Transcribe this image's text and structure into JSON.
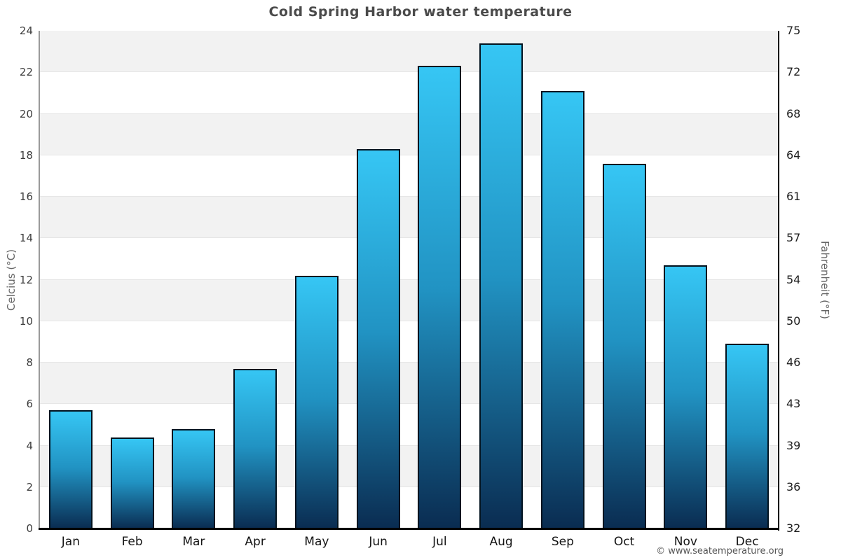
{
  "footer": {
    "text": "© www.seatemperature.org"
  },
  "chart_data": {
    "type": "bar",
    "title": "Cold Spring Harbor water temperature",
    "categories": [
      "Jan",
      "Feb",
      "Mar",
      "Apr",
      "May",
      "Jun",
      "Jul",
      "Aug",
      "Sep",
      "Oct",
      "Nov",
      "Dec"
    ],
    "values": [
      5.7,
      4.4,
      4.8,
      7.7,
      12.2,
      18.3,
      22.3,
      23.4,
      21.1,
      17.6,
      12.7,
      8.9
    ],
    "series_name": "Water temperature",
    "xlabel": "",
    "ylabel_left": "Celcius (°C)",
    "ylabel_right": "Fahrenheit (°F)",
    "ylim_left": [
      0,
      24
    ],
    "yticks_left": [
      0,
      2,
      4,
      6,
      8,
      10,
      12,
      14,
      16,
      18,
      20,
      22,
      24
    ],
    "yticks_right": [
      32,
      36,
      39,
      43,
      46,
      50,
      54,
      57,
      61,
      64,
      68,
      72,
      75
    ],
    "grid": "horizontal-bands",
    "legend": "none",
    "colors": {
      "band_gray": "#f2f2f2",
      "band_white": "#ffffff",
      "gridline": "#e6e6e6",
      "bar_gradient_top": "#36c6f4",
      "bar_gradient_mid": "#2193c3",
      "bar_gradient_bottom": "#0a2c51",
      "bar_border": "#02131f",
      "axis_left_spine": "#9a9a9a",
      "axis_right_spine": "#000000",
      "axis_bottom_spine": "#000000",
      "title_color": "#4a4a4a",
      "tick_color": "#3d3d3d"
    }
  }
}
